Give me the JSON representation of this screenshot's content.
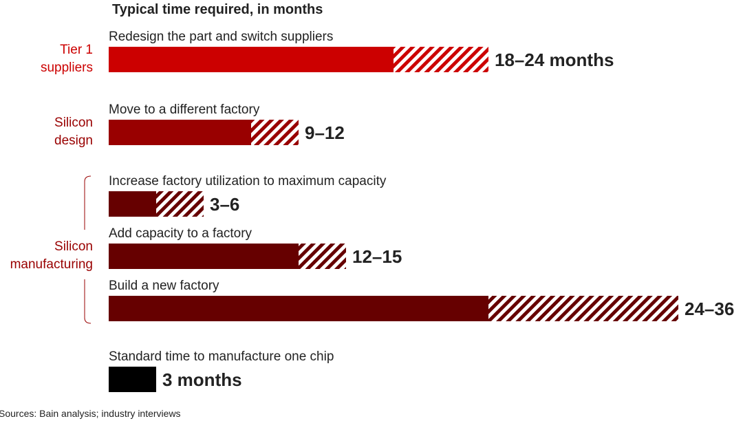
{
  "chart_data": {
    "type": "bar",
    "title": "Typical time required, in months",
    "xlabel": "",
    "ylabel": "",
    "xlim": [
      0,
      36
    ],
    "grid": false,
    "note": "Solid segment = minimum, hatched segment = range up to maximum",
    "groups": [
      {
        "name": "Tier 1\nsuppliers",
        "color": "#cc0000"
      },
      {
        "name": "Silicon\ndesign",
        "color": "#990000"
      },
      {
        "name": "Silicon\nmanufacturing",
        "color": "#660000"
      }
    ],
    "bars": [
      {
        "label": "Redesign the part and switch suppliers",
        "group": 0,
        "min": 18,
        "max": 24,
        "value_label": "18–24 months",
        "color": "#cc0000"
      },
      {
        "label": "Move to a different factory",
        "group": 1,
        "min": 9,
        "max": 12,
        "value_label": "9–12",
        "color": "#990000"
      },
      {
        "label": "Increase factory utilization to maximum capacity",
        "group": 2,
        "min": 3,
        "max": 6,
        "value_label": "3–6",
        "color": "#660000"
      },
      {
        "label": "Add capacity to a factory",
        "group": 2,
        "min": 12,
        "max": 15,
        "value_label": "12–15",
        "color": "#660000"
      },
      {
        "label": "Build a new factory",
        "group": 2,
        "min": 24,
        "max": 36,
        "value_label": "24–36",
        "color": "#660000"
      },
      {
        "label": "Standard time to manufacture one chip",
        "group": null,
        "min": 3,
        "max": 3,
        "value_label": "3 months",
        "color": "#000000"
      }
    ],
    "source": "Sources: Bain analysis; industry interviews"
  }
}
